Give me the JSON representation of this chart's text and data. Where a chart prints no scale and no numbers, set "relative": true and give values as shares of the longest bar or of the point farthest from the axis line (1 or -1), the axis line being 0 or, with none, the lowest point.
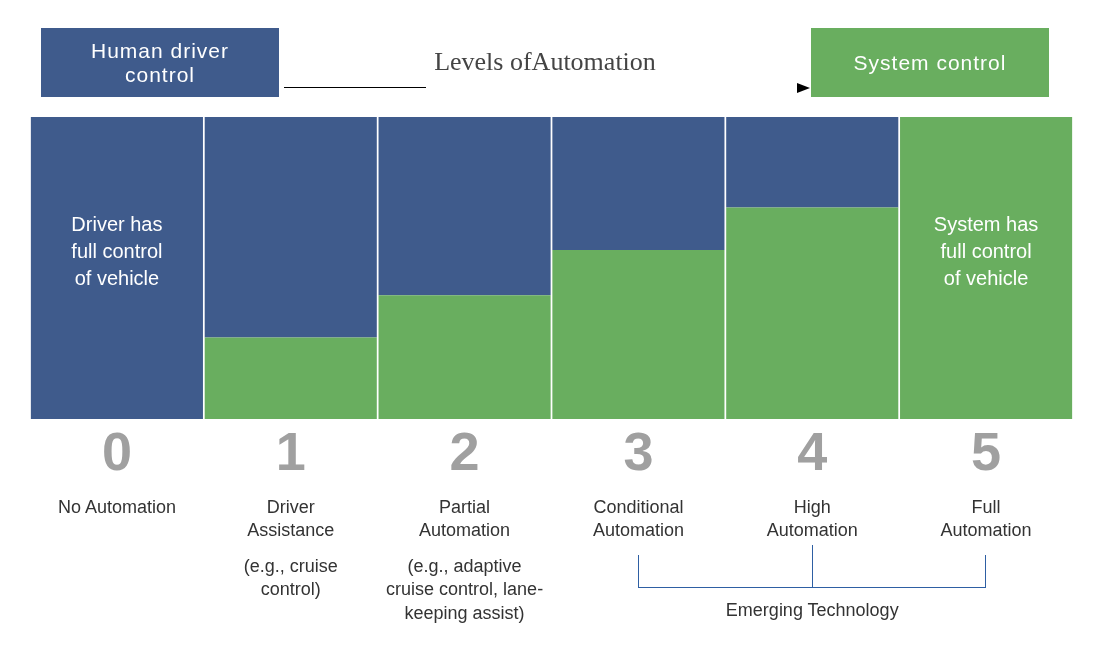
{
  "chart_data": {
    "type": "bar",
    "title": "Levels ofAutomation",
    "relative": true,
    "stacked": true,
    "legend": "top",
    "categories": [
      "0",
      "1",
      "2",
      "3",
      "4",
      "5"
    ],
    "series": [
      {
        "name": "System control",
        "color": "#69ae5f",
        "values": [
          0,
          0.27,
          0.41,
          0.56,
          0.7,
          1
        ]
      },
      {
        "name": "Human driver control",
        "color": "#3f5b8c",
        "values": [
          1,
          0.73,
          0.59,
          0.44,
          0.3,
          0
        ]
      }
    ],
    "annotations": [
      "Driver has\nfull control\nof vehicle",
      "System has\nfull control\nof vehicle",
      "No Automation",
      "Driver\nAssistance\n\n(e.g., cruise\ncontrol)",
      "Partial\nAutomation\n\n(e.g., adaptive\ncruise control, lane-\nkeeping assist)",
      "Conditional\nAutomation",
      "High\nAutomation",
      "Full\nAutomation",
      "Emerging Technology"
    ]
  }
}
